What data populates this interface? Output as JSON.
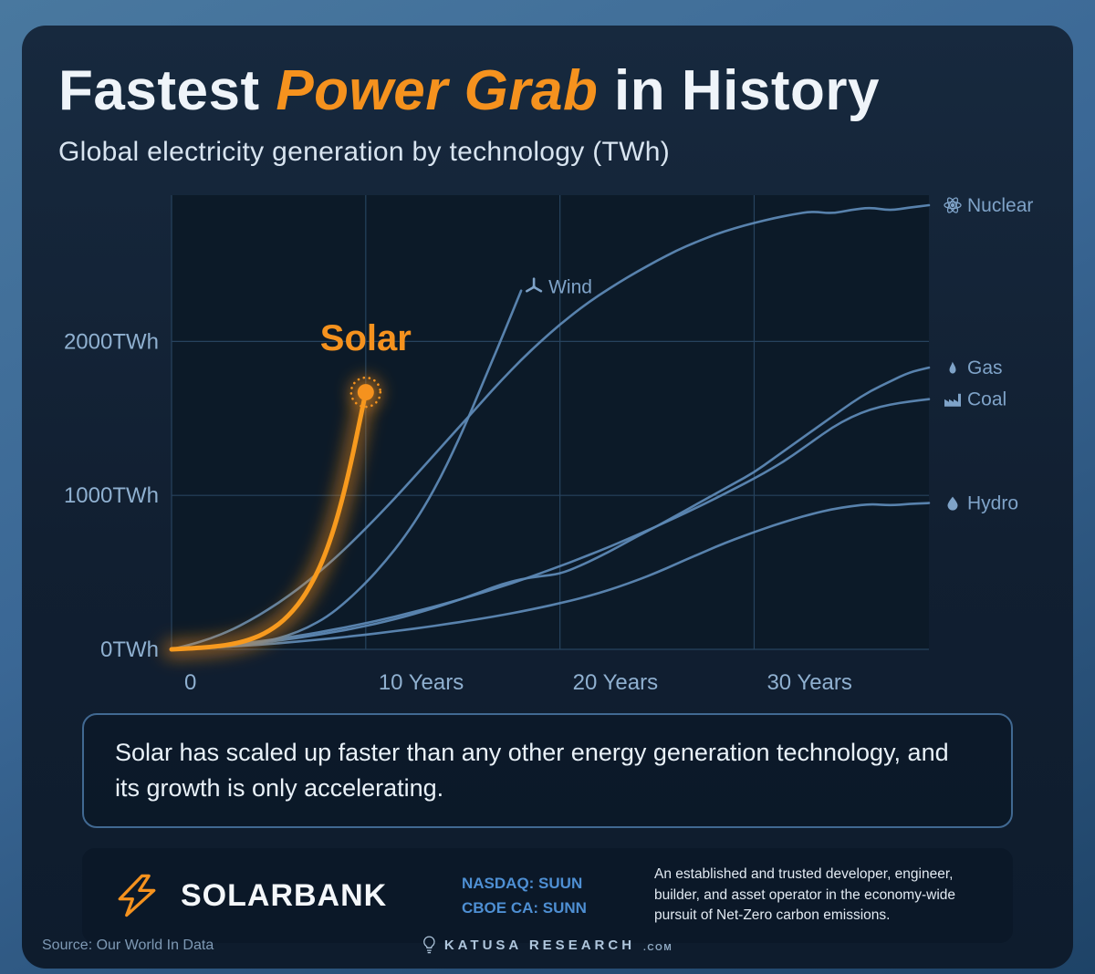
{
  "page": {
    "title_prefix": "Fastest ",
    "title_highlight": "Power Grab",
    "title_suffix": " in History",
    "subtitle": "Global electricity generation by technology (TWh)"
  },
  "colors": {
    "accent_orange": "#F5921E",
    "line_blue": "#5D88B4",
    "label_blue": "#7FA3C8",
    "tick_blue": "#8FB0D0",
    "grid": "#27435E",
    "plot_bg": "#0C1A28"
  },
  "chart_data": {
    "type": "line",
    "title": "Global electricity generation by technology (TWh)",
    "xlabel": "Years",
    "ylabel": "TWh",
    "xlim": [
      0,
      39
    ],
    "ylim": [
      0,
      2950
    ],
    "grid": true,
    "x_step_per_point": 1,
    "x_ticks": [
      {
        "value": 0,
        "label": "0"
      },
      {
        "value": 10,
        "label": "10 Years"
      },
      {
        "value": 20,
        "label": "20 Years"
      },
      {
        "value": 30,
        "label": "30 Years"
      }
    ],
    "y_ticks": [
      {
        "value": 0,
        "label": "0TWh"
      },
      {
        "value": 1000,
        "label": "1000TWh"
      },
      {
        "value": 2000,
        "label": "2000TWh"
      }
    ],
    "highlight_series": "Solar",
    "series": [
      {
        "name": "Nuclear",
        "color": "#5D88B4",
        "icon": "atom-icon",
        "label_position": "right-edge",
        "values": [
          0,
          30,
          70,
          120,
          185,
          260,
          345,
          440,
          545,
          660,
          785,
          915,
          1050,
          1190,
          1330,
          1470,
          1610,
          1750,
          1880,
          2000,
          2110,
          2210,
          2300,
          2380,
          2455,
          2525,
          2590,
          2645,
          2695,
          2735,
          2770,
          2800,
          2825,
          2845,
          2830,
          2855,
          2870,
          2850,
          2870,
          2885
        ]
      },
      {
        "name": "Gas",
        "color": "#5D88B4",
        "icon": "flame-icon",
        "label_position": "right-edge",
        "values": [
          0,
          6,
          14,
          24,
          36,
          50,
          66,
          84,
          104,
          126,
          152,
          180,
          212,
          248,
          288,
          330,
          376,
          424,
          456,
          475,
          490,
          540,
          600,
          665,
          735,
          800,
          870,
          940,
          1010,
          1080,
          1150,
          1240,
          1330,
          1420,
          1510,
          1600,
          1680,
          1740,
          1800,
          1830
        ]
      },
      {
        "name": "Coal",
        "color": "#5D88B4",
        "icon": "factory-icon",
        "label_position": "right-edge",
        "values": [
          0,
          8,
          18,
          30,
          44,
          60,
          78,
          98,
          120,
          144,
          170,
          198,
          228,
          260,
          294,
          330,
          368,
          408,
          450,
          494,
          540,
          588,
          638,
          690,
          744,
          800,
          858,
          918,
          980,
          1044,
          1110,
          1180,
          1260,
          1350,
          1440,
          1510,
          1560,
          1590,
          1610,
          1625
        ]
      },
      {
        "name": "Hydro",
        "color": "#5D88B4",
        "icon": "droplet-icon",
        "label_position": "right-edge",
        "values": [
          0,
          5,
          11,
          18,
          26,
          35,
          45,
          56,
          68,
          81,
          95,
          110,
          126,
          143,
          161,
          180,
          200,
          222,
          246,
          272,
          300,
          330,
          365,
          405,
          450,
          500,
          555,
          610,
          665,
          715,
          762,
          805,
          845,
          880,
          910,
          930,
          945,
          935,
          945,
          950
        ]
      },
      {
        "name": "Wind",
        "color": "#5D88B4",
        "icon": "wind-turbine-icon",
        "label_position": "end-inline",
        "values": [
          0,
          4,
          10,
          18,
          32,
          55,
          90,
          140,
          210,
          310,
          430,
          570,
          730,
          920,
          1150,
          1420,
          1720,
          2020,
          2330
        ]
      },
      {
        "name": "Solar",
        "color": "#F5921E",
        "icon": null,
        "label_position": "big-annotation",
        "values": [
          0,
          6,
          15,
          30,
          60,
          115,
          210,
          370,
          630,
          1060,
          1670
        ]
      }
    ]
  },
  "callout": {
    "text": "Solar has scaled up faster than any other energy generation technology, and its growth is only accelerating."
  },
  "banner": {
    "brand": "SOLARBANK",
    "tickers": [
      "NASDAQ: SUUN",
      "CBOE CA: SUNN"
    ],
    "description": "An established and trusted developer, engineer, builder, and asset operator in the economy-wide pursuit of Net-Zero carbon emissions."
  },
  "footer": {
    "source": "Source: Our World In Data",
    "brand": "KATUSA RESEARCH",
    "brand_suffix": ".COM"
  }
}
